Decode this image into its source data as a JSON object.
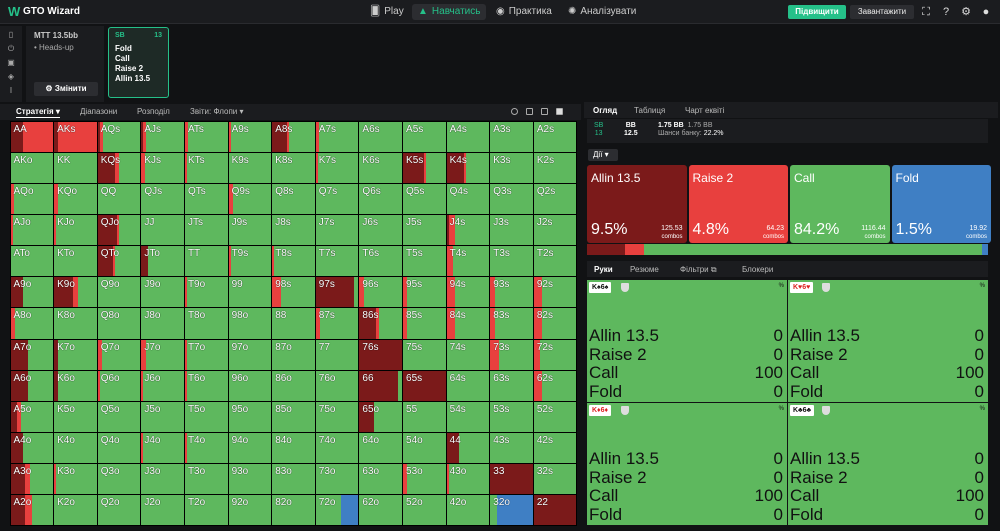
{
  "app": {
    "logo_letter": "W",
    "title": "GTO Wizard"
  },
  "nav": [
    {
      "label": "Play",
      "icon": "cards-icon",
      "active": false
    },
    {
      "label": "Навчатись",
      "icon": "graduation-cap-icon",
      "active": true
    },
    {
      "label": "Практика",
      "icon": "gamepad-icon",
      "active": false
    },
    {
      "label": "Аналізувати",
      "icon": "bulb-icon",
      "active": false
    }
  ],
  "top_actions": {
    "upgrade": "Підвищити",
    "download": "Завантажити"
  },
  "spot": {
    "format": "MTT 13.5bb",
    "mode": "• Heads-up",
    "change_button": "⚙ Змінити"
  },
  "sb_card": {
    "position": "SB",
    "stack": "13",
    "actions": [
      "Fold",
      "Call",
      "Raise 2",
      "Allin 13.5"
    ]
  },
  "left_toolbar": {
    "strategy": "Стратегія",
    "ranges": "Діапазони",
    "breakdown": "Розподіл",
    "reports": "Звіти: Флопи"
  },
  "right_tabs": {
    "overview": "Огляд",
    "table": "Таблиця",
    "equity_chart": "Чарт еквіті"
  },
  "positions": {
    "sb_label": "SB",
    "sb_stack": "13",
    "bb_label": "BB",
    "bb_stack": "12.5",
    "pot": "1.75 BB",
    "pot2": "1.75 BB",
    "odds_label": "Шанси банку:",
    "odds_value": "22.2%"
  },
  "actions_button": "Дії",
  "actions": [
    {
      "name": "Allin 13.5",
      "pct": "9.5%",
      "combos": "125.53",
      "color": "#7b1a1a"
    },
    {
      "name": "Raise 2",
      "pct": "4.8%",
      "combos": "64.23",
      "color": "#e8403e"
    },
    {
      "name": "Call",
      "pct": "84.2%",
      "combos": "1116.44",
      "color": "#5eb85e"
    },
    {
      "name": "Fold",
      "pct": "1.5%",
      "combos": "19.92",
      "color": "#3f7fc4"
    }
  ],
  "combos_label": "combos",
  "hand_tabs": {
    "hands": "Руки",
    "summary": "Резюме",
    "filters": "Фільтри",
    "blockers": "Блокери"
  },
  "hand_cards": [
    {
      "hand": "K♠6♠",
      "rows": [
        [
          "Allin 13.5",
          "0"
        ],
        [
          "Raise 2",
          "0"
        ],
        [
          "Call",
          "100"
        ],
        [
          "Fold",
          "0"
        ]
      ]
    },
    {
      "hand": "K♥6♥",
      "rows": [
        [
          "Allin 13.5",
          "0"
        ],
        [
          "Raise 2",
          "0"
        ],
        [
          "Call",
          "100"
        ],
        [
          "Fold",
          "0"
        ]
      ]
    },
    {
      "hand": "K♦6♦",
      "rows": [
        [
          "Allin 13.5",
          "0"
        ],
        [
          "Raise 2",
          "0"
        ],
        [
          "Call",
          "100"
        ],
        [
          "Fold",
          "0"
        ]
      ]
    },
    {
      "hand": "K♣6♣",
      "rows": [
        [
          "Allin 13.5",
          "0"
        ],
        [
          "Raise 2",
          "0"
        ],
        [
          "Call",
          "100"
        ],
        [
          "Fold",
          "0"
        ]
      ]
    }
  ],
  "pct_sign": "%",
  "grid": [
    [
      "AA",
      "AKs",
      "AQs",
      "AJs",
      "ATs",
      "A9s",
      "A8s",
      "A7s",
      "A6s",
      "A5s",
      "A4s",
      "A3s",
      "A2s"
    ],
    [
      "AKo",
      "KK",
      "KQs",
      "KJs",
      "KTs",
      "K9s",
      "K8s",
      "K7s",
      "K6s",
      "K5s",
      "K4s",
      "K3s",
      "K2s"
    ],
    [
      "AQo",
      "KQo",
      "QQ",
      "QJs",
      "QTs",
      "Q9s",
      "Q8s",
      "Q7s",
      "Q6s",
      "Q5s",
      "Q4s",
      "Q3s",
      "Q2s"
    ],
    [
      "AJo",
      "KJo",
      "QJo",
      "JJ",
      "JTs",
      "J9s",
      "J8s",
      "J7s",
      "J6s",
      "J5s",
      "J4s",
      "J3s",
      "J2s"
    ],
    [
      "ATo",
      "KTo",
      "QTo",
      "JTo",
      "TT",
      "T9s",
      "T8s",
      "T7s",
      "T6s",
      "T5s",
      "T4s",
      "T3s",
      "T2s"
    ],
    [
      "A9o",
      "K9o",
      "Q9o",
      "J9o",
      "T9o",
      "99",
      "98s",
      "97s",
      "96s",
      "95s",
      "94s",
      "93s",
      "92s"
    ],
    [
      "A8o",
      "K8o",
      "Q8o",
      "J8o",
      "T8o",
      "98o",
      "88",
      "87s",
      "86s",
      "85s",
      "84s",
      "83s",
      "82s"
    ],
    [
      "A7o",
      "K7o",
      "Q7o",
      "J7o",
      "T7o",
      "97o",
      "87o",
      "77",
      "76s",
      "75s",
      "74s",
      "73s",
      "72s"
    ],
    [
      "A6o",
      "K6o",
      "Q6o",
      "J6o",
      "T6o",
      "96o",
      "86o",
      "76o",
      "66",
      "65s",
      "64s",
      "63s",
      "62s"
    ],
    [
      "A5o",
      "K5o",
      "Q5o",
      "J5o",
      "T5o",
      "95o",
      "85o",
      "75o",
      "65o",
      "55",
      "54s",
      "53s",
      "52s"
    ],
    [
      "A4o",
      "K4o",
      "Q4o",
      "J4o",
      "T4o",
      "94o",
      "84o",
      "74o",
      "64o",
      "54o",
      "44",
      "43s",
      "42s"
    ],
    [
      "A3o",
      "K3o",
      "Q3o",
      "J3o",
      "T3o",
      "93o",
      "83o",
      "73o",
      "63o",
      "53o",
      "43o",
      "33",
      "32s"
    ],
    [
      "A2o",
      "K2o",
      "Q2o",
      "J2o",
      "T2o",
      "92o",
      "82o",
      "72o",
      "62o",
      "52o",
      "42o",
      "32o",
      "22"
    ]
  ],
  "grid_freqs": {
    "AA": [
      0.3,
      0.7,
      0,
      0
    ],
    "AKs": [
      0.1,
      0.9,
      0,
      0
    ],
    "AQs": [
      0.05,
      0.07,
      0.88,
      0
    ],
    "AJs": [
      0.05,
      0.07,
      0.88,
      0
    ],
    "ATs": [
      0,
      0.07,
      0.93,
      0
    ],
    "A9s": [
      0,
      0.05,
      0.95,
      0
    ],
    "A8s": [
      0.35,
      0.05,
      0.6,
      0
    ],
    "A7s": [
      0,
      0.08,
      0.92,
      0
    ],
    "A6s": [
      0,
      0,
      1,
      0
    ],
    "A5s": [
      0,
      0,
      1,
      0
    ],
    "A4s": [
      0,
      0,
      1,
      0
    ],
    "A3s": [
      0,
      0,
      1,
      0
    ],
    "A2s": [
      0,
      0,
      1,
      0
    ],
    "AKo": [
      0,
      0,
      1,
      0
    ],
    "KK": [
      0,
      0,
      1,
      0
    ],
    "KQs": [
      0.4,
      0.1,
      0.5,
      0
    ],
    "KJs": [
      0,
      0.08,
      0.92,
      0
    ],
    "KTs": [
      0,
      0.05,
      0.95,
      0
    ],
    "K9s": [
      0,
      0,
      1,
      0
    ],
    "K8s": [
      0,
      0,
      1,
      0
    ],
    "K7s": [
      0,
      0.06,
      0.94,
      0
    ],
    "K6s": [
      0,
      0,
      1,
      0
    ],
    "K5s": [
      0.5,
      0.05,
      0.45,
      0
    ],
    "K4s": [
      0.4,
      0.05,
      0.55,
      0
    ],
    "K3s": [
      0,
      0,
      1,
      0
    ],
    "K2s": [
      0,
      0,
      1,
      0
    ],
    "AQo": [
      0,
      0.08,
      0.92,
      0
    ],
    "KQo": [
      0,
      0.1,
      0.9,
      0
    ],
    "QQ": [
      0,
      0,
      1,
      0
    ],
    "QJs": [
      0,
      0,
      1,
      0
    ],
    "QTs": [
      0,
      0,
      1,
      0
    ],
    "Q9s": [
      0,
      0.1,
      0.9,
      0
    ],
    "Q8s": [
      0,
      0,
      1,
      0
    ],
    "Q7s": [
      0,
      0,
      1,
      0
    ],
    "Q6s": [
      0,
      0,
      1,
      0
    ],
    "Q5s": [
      0,
      0,
      1,
      0
    ],
    "Q4s": [
      0,
      0,
      1,
      0
    ],
    "Q3s": [
      0,
      0,
      1,
      0
    ],
    "Q2s": [
      0,
      0,
      1,
      0
    ],
    "AJo": [
      0,
      0.05,
      0.95,
      0
    ],
    "KJo": [
      0,
      0.05,
      0.95,
      0
    ],
    "QJo": [
      0.45,
      0.05,
      0.5,
      0
    ],
    "JJ": [
      0,
      0,
      1,
      0
    ],
    "JTs": [
      0,
      0,
      1,
      0
    ],
    "J9s": [
      0,
      0,
      1,
      0
    ],
    "J8s": [
      0,
      0,
      1,
      0
    ],
    "J7s": [
      0,
      0,
      1,
      0
    ],
    "J6s": [
      0,
      0,
      1,
      0
    ],
    "J5s": [
      0,
      0,
      1,
      0
    ],
    "J4s": [
      0.05,
      0.15,
      0.8,
      0
    ],
    "J3s": [
      0,
      0,
      1,
      0
    ],
    "J2s": [
      0,
      0,
      1,
      0
    ],
    "ATo": [
      0,
      0,
      1,
      0
    ],
    "KTo": [
      0,
      0,
      1,
      0
    ],
    "QTo": [
      0.35,
      0.05,
      0.6,
      0
    ],
    "JTo": [
      0.15,
      0,
      0.85,
      0
    ],
    "TT": [
      0,
      0,
      1,
      0
    ],
    "T9s": [
      0,
      0.05,
      0.95,
      0
    ],
    "T8s": [
      0,
      0.05,
      0.95,
      0
    ],
    "T7s": [
      0,
      0,
      1,
      0
    ],
    "T6s": [
      0,
      0,
      1,
      0
    ],
    "T5s": [
      0,
      0,
      1,
      0
    ],
    "T4s": [
      0,
      0.15,
      0.85,
      0
    ],
    "T3s": [
      0,
      0,
      1,
      0
    ],
    "T2s": [
      0,
      0,
      1,
      0
    ],
    "A9o": [
      0.3,
      0,
      0.7,
      0
    ],
    "K9o": [
      0.45,
      0.1,
      0.45,
      0
    ],
    "Q9o": [
      0,
      0,
      1,
      0
    ],
    "J9o": [
      0,
      0,
      1,
      0
    ],
    "T9o": [
      0,
      0.05,
      0.95,
      0
    ],
    "99": [
      0,
      0,
      1,
      0
    ],
    "98s": [
      0,
      0.2,
      0.8,
      0
    ],
    "97s": [
      0.9,
      0,
      0.1,
      0
    ],
    "96s": [
      0,
      0.1,
      0.9,
      0
    ],
    "95s": [
      0,
      0.1,
      0.9,
      0
    ],
    "94s": [
      0,
      0.2,
      0.8,
      0
    ],
    "93s": [
      0,
      0.1,
      0.9,
      0
    ],
    "92s": [
      0,
      0.2,
      0.8,
      0
    ],
    "A8o": [
      0,
      0.1,
      0.9,
      0
    ],
    "K8o": [
      0,
      0,
      1,
      0
    ],
    "Q8o": [
      0,
      0,
      1,
      0
    ],
    "J8o": [
      0,
      0,
      1,
      0
    ],
    "T8o": [
      0,
      0,
      1,
      0
    ],
    "98o": [
      0,
      0,
      1,
      0
    ],
    "88": [
      0,
      0,
      1,
      0
    ],
    "87s": [
      0,
      0.1,
      0.9,
      0
    ],
    "86s": [
      0.4,
      0.05,
      0.55,
      0
    ],
    "85s": [
      0,
      0.1,
      0.9,
      0
    ],
    "84s": [
      0,
      0.2,
      0.8,
      0
    ],
    "83s": [
      0,
      0.1,
      0.9,
      0
    ],
    "82s": [
      0,
      0.2,
      0.8,
      0
    ],
    "A7o": [
      0.4,
      0,
      0.6,
      0
    ],
    "K7o": [
      0.1,
      0,
      0.9,
      0
    ],
    "Q7o": [
      0,
      0.1,
      0.9,
      0
    ],
    "J7o": [
      0,
      0.1,
      0.9,
      0
    ],
    "T7o": [
      0,
      0.05,
      0.95,
      0
    ],
    "97o": [
      0,
      0,
      1,
      0
    ],
    "87o": [
      0,
      0,
      1,
      0
    ],
    "77": [
      0,
      0,
      1,
      0
    ],
    "76s": [
      1,
      0,
      0,
      0
    ],
    "75s": [
      0,
      0,
      1,
      0
    ],
    "74s": [
      0,
      0,
      1,
      0
    ],
    "73s": [
      0,
      0.2,
      0.8,
      0
    ],
    "72s": [
      0,
      0.15,
      0.85,
      0
    ],
    "A6o": [
      0.4,
      0,
      0.6,
      0
    ],
    "K6o": [
      0.1,
      0,
      0.9,
      0
    ],
    "Q6o": [
      0,
      0.05,
      0.95,
      0
    ],
    "J6o": [
      0,
      0.05,
      0.95,
      0
    ],
    "T6o": [
      0,
      0.05,
      0.95,
      0
    ],
    "96o": [
      0,
      0,
      1,
      0
    ],
    "86o": [
      0,
      0,
      1,
      0
    ],
    "76o": [
      0,
      0,
      1,
      0
    ],
    "66": [
      0.9,
      0,
      0.1,
      0
    ],
    "65s": [
      1,
      0,
      0,
      0
    ],
    "64s": [
      0,
      0,
      1,
      0
    ],
    "63s": [
      0,
      0,
      1,
      0
    ],
    "62s": [
      0,
      0.2,
      0.8,
      0
    ],
    "A5o": [
      0.15,
      0.1,
      0.75,
      0
    ],
    "K5o": [
      0,
      0,
      1,
      0
    ],
    "Q5o": [
      0,
      0,
      1,
      0
    ],
    "J5o": [
      0,
      0,
      1,
      0
    ],
    "T5o": [
      0,
      0,
      1,
      0
    ],
    "95o": [
      0,
      0,
      1,
      0
    ],
    "85o": [
      0,
      0,
      1,
      0
    ],
    "75o": [
      0,
      0,
      1,
      0
    ],
    "65o": [
      0.35,
      0,
      0.65,
      0
    ],
    "55": [
      0,
      0,
      1,
      0
    ],
    "54s": [
      0,
      0,
      1,
      0
    ],
    "53s": [
      0,
      0,
      1,
      0
    ],
    "52s": [
      0,
      0,
      1,
      0
    ],
    "A4o": [
      0.3,
      0,
      0.7,
      0
    ],
    "K4o": [
      0,
      0,
      1,
      0
    ],
    "Q4o": [
      0,
      0,
      1,
      0
    ],
    "J4o": [
      0,
      0.05,
      0.95,
      0
    ],
    "T4o": [
      0,
      0.05,
      0.95,
      0
    ],
    "94o": [
      0,
      0,
      1,
      0
    ],
    "84o": [
      0,
      0,
      1,
      0
    ],
    "74o": [
      0,
      0,
      1,
      0
    ],
    "64o": [
      0,
      0,
      1,
      0
    ],
    "54o": [
      0,
      0,
      1,
      0
    ],
    "44": [
      0.3,
      0,
      0.7,
      0
    ],
    "43s": [
      0,
      0,
      1,
      0
    ],
    "42s": [
      0,
      0,
      1,
      0
    ],
    "A3o": [
      0.35,
      0.1,
      0.55,
      0
    ],
    "K3o": [
      0,
      0.05,
      0.95,
      0
    ],
    "Q3o": [
      0,
      0,
      1,
      0
    ],
    "J3o": [
      0,
      0,
      1,
      0
    ],
    "T3o": [
      0,
      0,
      1,
      0
    ],
    "93o": [
      0,
      0,
      1,
      0
    ],
    "83o": [
      0,
      0,
      1,
      0
    ],
    "73o": [
      0,
      0,
      1,
      0
    ],
    "63o": [
      0,
      0,
      1,
      0
    ],
    "53o": [
      0,
      0.1,
      0.9,
      0
    ],
    "43o": [
      0,
      0.05,
      0.95,
      0
    ],
    "33": [
      1,
      0,
      0,
      0
    ],
    "32s": [
      0,
      0,
      1,
      0
    ],
    "A2o": [
      0.35,
      0.15,
      0.5,
      0
    ],
    "K2o": [
      0,
      0,
      1,
      0
    ],
    "Q2o": [
      0,
      0,
      1,
      0
    ],
    "J2o": [
      0,
      0,
      1,
      0
    ],
    "T2o": [
      0,
      0,
      1,
      0
    ],
    "92o": [
      0,
      0,
      1,
      0
    ],
    "82o": [
      0,
      0,
      1,
      0
    ],
    "72o": [
      0,
      0,
      0.6,
      0.4
    ],
    "62o": [
      0,
      0,
      1,
      0
    ],
    "52o": [
      0,
      0,
      1,
      0
    ],
    "42o": [
      0,
      0,
      1,
      0
    ],
    "32o": [
      0,
      0,
      0.15,
      0.85
    ],
    "22": [
      1,
      0,
      0,
      0
    ]
  },
  "colors": {
    "allin": "#7b1a1a",
    "raise": "#e8403e",
    "call": "#5eb85e",
    "fold": "#3f7fc4",
    "accent": "#25c089"
  }
}
